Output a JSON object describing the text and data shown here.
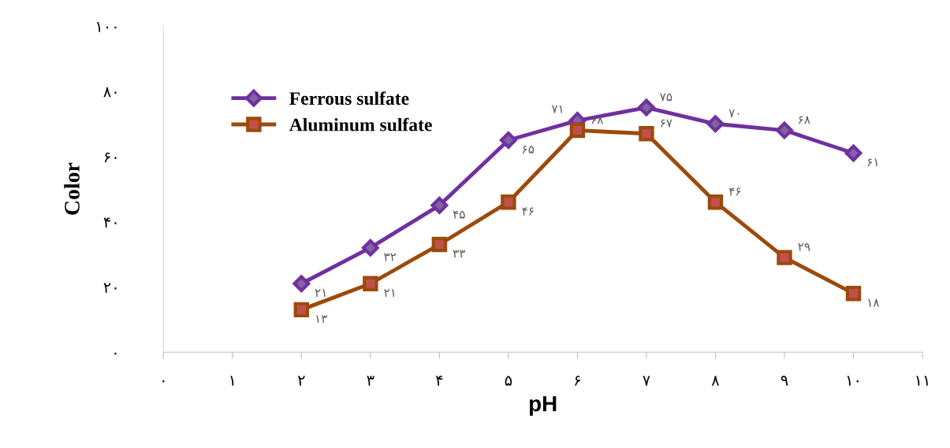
{
  "chart_data": {
    "type": "line",
    "xlabel": "pH",
    "ylabel": "Color",
    "x": [
      2,
      3,
      4,
      5,
      6,
      7,
      8,
      9,
      10
    ],
    "series": [
      {
        "name": "Ferrous sulfate",
        "color": "#7030a0",
        "marker": "diamond",
        "values": [
          21,
          32,
          45,
          65,
          71,
          75,
          70,
          68,
          61
        ],
        "value_labels": [
          "۲۱",
          "۳۲",
          "۴۵",
          "۶۵",
          "۷۱",
          "۷۵",
          "۷۰",
          "۶۸",
          "۶۱"
        ]
      },
      {
        "name": "Aluminum sulfate",
        "color": "#9c4a0c",
        "marker": "square",
        "values": [
          13,
          21,
          33,
          46,
          68,
          67,
          46,
          29,
          18
        ],
        "value_labels": [
          "۱۳",
          "۲۱",
          "۳۳",
          "۴۶",
          "۶۸",
          "۶۷",
          "۴۶",
          "۲۹",
          "۱۸"
        ]
      }
    ],
    "xlim": [
      0,
      11
    ],
    "xticks": [
      {
        "value": 0,
        "label": "۰"
      },
      {
        "value": 1,
        "label": "۱"
      },
      {
        "value": 2,
        "label": "۲"
      },
      {
        "value": 3,
        "label": "۳"
      },
      {
        "value": 4,
        "label": "۴"
      },
      {
        "value": 5,
        "label": "۵"
      },
      {
        "value": 6,
        "label": "۶"
      },
      {
        "value": 7,
        "label": "۷"
      },
      {
        "value": 8,
        "label": "۸"
      },
      {
        "value": 9,
        "label": "۹"
      },
      {
        "value": 10,
        "label": "۱۰"
      },
      {
        "value": 11,
        "label": "۱۱"
      }
    ],
    "ylim": [
      0,
      100
    ],
    "yticks": [
      {
        "value": 0,
        "label": "۰"
      },
      {
        "value": 20,
        "label": "۲۰"
      },
      {
        "value": 40,
        "label": "۴۰"
      },
      {
        "value": 60,
        "label": "۶۰"
      },
      {
        "value": 80,
        "label": "۸۰"
      },
      {
        "value": 100,
        "label": "۱۰۰"
      }
    ],
    "grid": false,
    "legend": "top left",
    "line_style": "solid"
  }
}
